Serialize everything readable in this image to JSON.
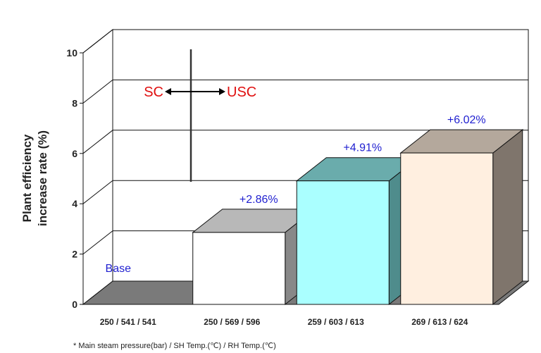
{
  "chart_data": {
    "type": "bar",
    "title": "",
    "xlabel": "",
    "ylabel_lines": [
      "Plant efficiency",
      "increase rate (%)"
    ],
    "ylim": [
      0,
      10
    ],
    "yticks": [
      "0",
      "2",
      "4",
      "6",
      "8",
      "10"
    ],
    "categories": [
      "250 / 541 / 541",
      "250 / 569 / 596",
      "259 / 603 / 613",
      "269 / 613 / 624"
    ],
    "values": [
      0,
      2.86,
      4.91,
      6.02
    ],
    "data_labels": [
      "Base",
      "+2.86%",
      "+4.91%",
      "+6.02%"
    ],
    "bar_colors": [
      "#ffffff",
      "#ffffff",
      "#aaffff",
      "#ffefe0"
    ],
    "annotation": {
      "left": "SC",
      "right": "USC",
      "color": "#e01010"
    },
    "footnote": "* Main steam pressure(bar) / SH Temp.(℃) / RH Temp.(℃)",
    "grid": true
  }
}
